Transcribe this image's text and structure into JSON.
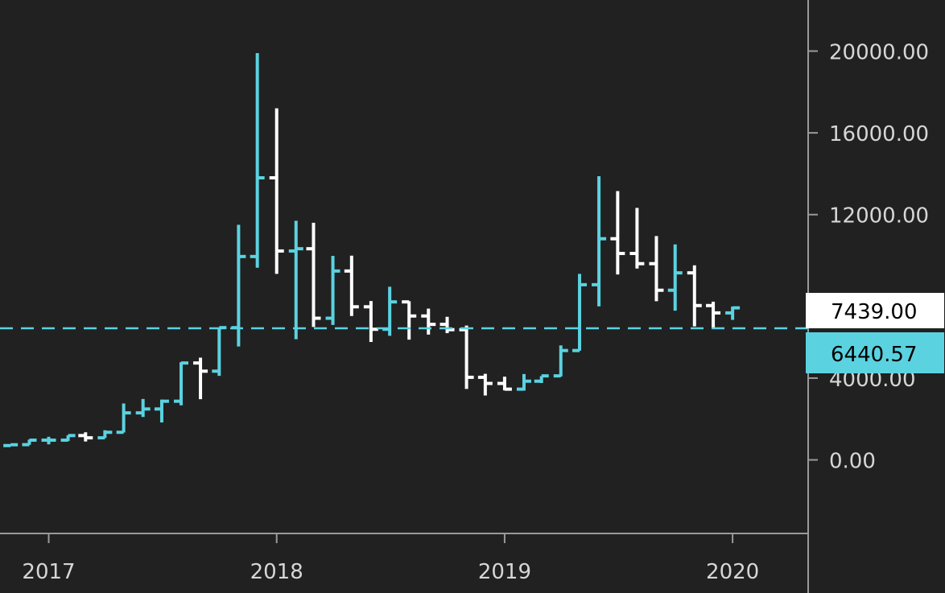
{
  "colors": {
    "background": "#212121",
    "up": "#5bd2e0",
    "down": "#ffffff",
    "axis": "#9a9a9a",
    "tick_text": "#d6d6d6",
    "current_label_bg": "#ffffff",
    "current_label_text": "#000000",
    "ref_label_bg": "#5bd2e0",
    "ref_label_text": "#000000"
  },
  "chart_data": {
    "type": "ohlc",
    "interval": "monthly",
    "y_ticks": [
      "20000.00",
      "16000.00",
      "12000.00",
      "4000.00",
      "0.00"
    ],
    "y_tick_values": [
      20000,
      16000,
      12000,
      4000,
      0
    ],
    "x_ticks": [
      "2017",
      "2018",
      "2019",
      "2020"
    ],
    "x_tick_dates": [
      "2017-01-01",
      "2018-01-01",
      "2019-01-01",
      "2020-01-01"
    ],
    "ylim": [
      -3600,
      22500
    ],
    "xlim": [
      "2016-10-15",
      "2020-05-01"
    ],
    "current_price_label": "7439.00",
    "current_price": 7439,
    "reference_line_label": "6440.57",
    "reference_line_value": 6440.57,
    "bars": [
      {
        "date": "2016-11-01",
        "o": 700,
        "h": 760,
        "l": 690,
        "c": 740
      },
      {
        "date": "2016-12-01",
        "o": 745,
        "h": 990,
        "l": 740,
        "c": 965
      },
      {
        "date": "2017-01-01",
        "o": 965,
        "h": 1130,
        "l": 760,
        "c": 965
      },
      {
        "date": "2017-02-01",
        "o": 965,
        "h": 1200,
        "l": 920,
        "c": 1190
      },
      {
        "date": "2017-03-01",
        "o": 1190,
        "h": 1350,
        "l": 900,
        "c": 1080
      },
      {
        "date": "2017-04-01",
        "o": 1080,
        "h": 1450,
        "l": 1070,
        "c": 1350
      },
      {
        "date": "2017-05-01",
        "o": 1350,
        "h": 2760,
        "l": 1340,
        "c": 2300
      },
      {
        "date": "2017-06-01",
        "o": 2300,
        "h": 2980,
        "l": 2100,
        "c": 2490
      },
      {
        "date": "2017-07-01",
        "o": 2490,
        "h": 2950,
        "l": 1830,
        "c": 2870
      },
      {
        "date": "2017-08-01",
        "o": 2870,
        "h": 4780,
        "l": 2670,
        "c": 4740
      },
      {
        "date": "2017-09-01",
        "o": 4740,
        "h": 5000,
        "l": 2970,
        "c": 4340
      },
      {
        "date": "2017-10-01",
        "o": 4340,
        "h": 6470,
        "l": 4110,
        "c": 6470
      },
      {
        "date": "2017-11-01",
        "o": 6470,
        "h": 11500,
        "l": 5550,
        "c": 9950
      },
      {
        "date": "2017-12-01",
        "o": 9950,
        "h": 19900,
        "l": 9400,
        "c": 13800
      },
      {
        "date": "2018-01-01",
        "o": 13800,
        "h": 17200,
        "l": 9100,
        "c": 10220
      },
      {
        "date": "2018-02-01",
        "o": 10220,
        "h": 11700,
        "l": 5900,
        "c": 10330
      },
      {
        "date": "2018-03-01",
        "o": 10330,
        "h": 11600,
        "l": 6500,
        "c": 6930
      },
      {
        "date": "2018-04-01",
        "o": 6930,
        "h": 9980,
        "l": 6600,
        "c": 9240
      },
      {
        "date": "2018-05-01",
        "o": 9240,
        "h": 9990,
        "l": 7040,
        "c": 7490
      },
      {
        "date": "2018-06-01",
        "o": 7490,
        "h": 7770,
        "l": 5770,
        "c": 6390
      },
      {
        "date": "2018-07-01",
        "o": 6390,
        "h": 8470,
        "l": 6070,
        "c": 7730
      },
      {
        "date": "2018-08-01",
        "o": 7730,
        "h": 7760,
        "l": 5880,
        "c": 7040
      },
      {
        "date": "2018-09-01",
        "o": 7040,
        "h": 7400,
        "l": 6130,
        "c": 6630
      },
      {
        "date": "2018-10-01",
        "o": 6630,
        "h": 7000,
        "l": 6200,
        "c": 6370
      },
      {
        "date": "2018-11-01",
        "o": 6370,
        "h": 6570,
        "l": 3470,
        "c": 4040
      },
      {
        "date": "2018-12-01",
        "o": 4040,
        "h": 4210,
        "l": 3150,
        "c": 3740
      },
      {
        "date": "2019-01-01",
        "o": 3740,
        "h": 4070,
        "l": 3400,
        "c": 3460
      },
      {
        "date": "2019-02-01",
        "o": 3460,
        "h": 4200,
        "l": 3390,
        "c": 3850
      },
      {
        "date": "2019-03-01",
        "o": 3850,
        "h": 4100,
        "l": 3760,
        "c": 4110
      },
      {
        "date": "2019-04-01",
        "o": 4110,
        "h": 5600,
        "l": 4080,
        "c": 5350
      },
      {
        "date": "2019-05-01",
        "o": 5350,
        "h": 9100,
        "l": 5340,
        "c": 8570
      },
      {
        "date": "2019-06-01",
        "o": 8570,
        "h": 13880,
        "l": 7510,
        "c": 10820
      },
      {
        "date": "2019-07-01",
        "o": 10820,
        "h": 13150,
        "l": 9070,
        "c": 10100
      },
      {
        "date": "2019-08-01",
        "o": 10100,
        "h": 12330,
        "l": 9360,
        "c": 9600
      },
      {
        "date": "2019-09-01",
        "o": 9600,
        "h": 10950,
        "l": 7760,
        "c": 8300
      },
      {
        "date": "2019-10-01",
        "o": 8300,
        "h": 10540,
        "l": 7300,
        "c": 9150
      },
      {
        "date": "2019-11-01",
        "o": 9150,
        "h": 9520,
        "l": 6530,
        "c": 7550
      },
      {
        "date": "2019-12-01",
        "o": 7550,
        "h": 7740,
        "l": 6430,
        "c": 7190
      },
      {
        "date": "2020-01-01",
        "o": 7190,
        "h": 7500,
        "l": 6850,
        "c": 7439
      }
    ]
  }
}
